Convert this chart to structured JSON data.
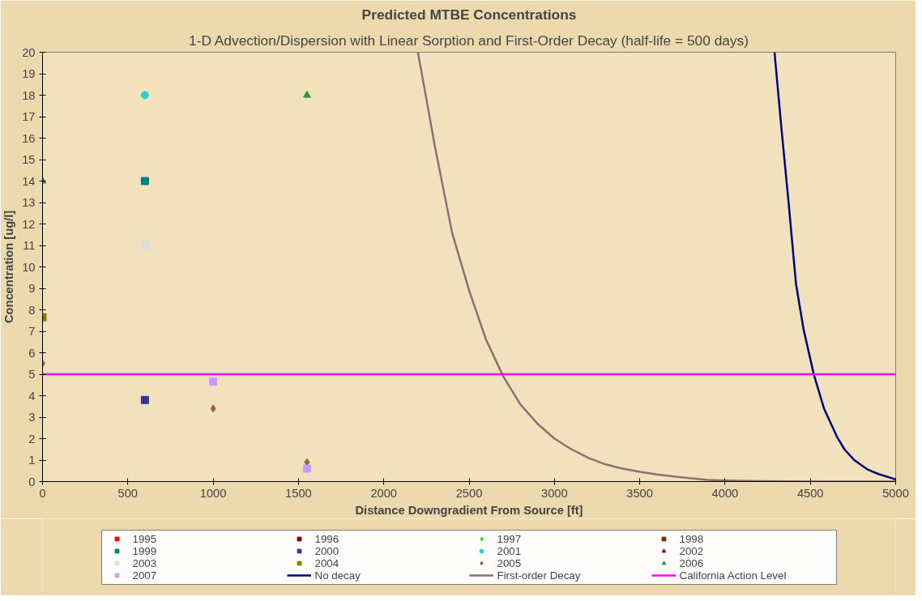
{
  "chart_data": {
    "type": "scatter",
    "title": "Predicted MTBE Concentrations",
    "subtitle": "1-D Advection/Dispersion with Linear Sorption and First-Order Decay (half-life = 500 days)",
    "xlabel": "Distance Downgradient From Source [ft]",
    "ylabel": "Concentration [ug/l]",
    "xlim": [
      0,
      5000
    ],
    "xticks": [
      0,
      500,
      1000,
      1500,
      2000,
      2500,
      3000,
      3500,
      4000,
      4500,
      5000
    ],
    "ylim": [
      0,
      20
    ],
    "yticks": [
      0,
      1,
      2,
      3,
      4,
      5,
      6,
      7,
      8,
      9,
      10,
      11,
      12,
      13,
      14,
      15,
      16,
      17,
      18,
      19,
      20
    ],
    "grid": false,
    "legend": "bottom",
    "series": [
      {
        "name": "1995",
        "color": "#ff0000",
        "marker": "square"
      },
      {
        "name": "1996",
        "color": "#800000",
        "marker": "square"
      },
      {
        "name": "1997",
        "color": "#00ff00",
        "marker": "diamond"
      },
      {
        "name": "1998",
        "color": "#663300",
        "marker": "square"
      },
      {
        "name": "1999",
        "color": "#008080",
        "marker": "square",
        "x": [
          600
        ],
        "values": [
          14
        ]
      },
      {
        "name": "2000",
        "color": "#333399",
        "marker": "square",
        "x": [
          600
        ],
        "values": [
          3.8
        ]
      },
      {
        "name": "2001",
        "color": "#33cccc",
        "marker": "circle",
        "x": [
          600
        ],
        "values": [
          18
        ]
      },
      {
        "name": "2002",
        "color": "#800080",
        "marker": "triangle"
      },
      {
        "name": "2003",
        "color": "#dddddd",
        "marker": "square",
        "x": [
          600
        ],
        "values": [
          11
        ]
      },
      {
        "name": "2004",
        "color": "#808000",
        "marker": "square",
        "x": [
          0
        ],
        "values": [
          7.65
        ]
      },
      {
        "name": "2005",
        "color": "#996633",
        "marker": "diamond",
        "x": [
          0,
          1000,
          1550
        ],
        "values": [
          5.5,
          3.4,
          0.9
        ]
      },
      {
        "name": "2006",
        "color": "#339933",
        "marker": "triangle",
        "x": [
          0,
          1550
        ],
        "values": [
          14,
          18
        ]
      },
      {
        "name": "2007",
        "color": "#cc99ff",
        "marker": "square",
        "x": [
          1000,
          1550
        ],
        "values": [
          4.65,
          0.6
        ]
      },
      {
        "name": "No decay",
        "type": "line",
        "color": "#000080",
        "marker": "none",
        "x": [
          4290,
          4330,
          4370,
          4416,
          4460,
          4520,
          4580,
          4655,
          4700,
          4757,
          4838,
          4900,
          5000
        ],
        "values": [
          20,
          16.5,
          13.2,
          9.2,
          7.1,
          5.0,
          3.4,
          2.1,
          1.5,
          1.0,
          0.55,
          0.35,
          0.1
        ]
      },
      {
        "name": "First-order Decay",
        "type": "line",
        "color": "#8c7070",
        "marker": "none",
        "x": [
          2200,
          2300,
          2400,
          2500,
          2600,
          2700,
          2800,
          2900,
          3000,
          3100,
          3200,
          3300,
          3400,
          3500,
          3600,
          3700,
          3800,
          3900,
          4000,
          4200,
          4500,
          5000
        ],
        "values": [
          20,
          15.6,
          11.6,
          8.9,
          6.6,
          4.9,
          3.6,
          2.7,
          2.0,
          1.5,
          1.1,
          0.8,
          0.6,
          0.45,
          0.33,
          0.24,
          0.15,
          0.08,
          0.05,
          0.02,
          0,
          0
        ]
      },
      {
        "name": "California Action Level",
        "type": "line",
        "color": "#ff00ff",
        "marker": "none",
        "x": [
          0,
          5000
        ],
        "values": [
          5,
          5
        ]
      }
    ]
  }
}
